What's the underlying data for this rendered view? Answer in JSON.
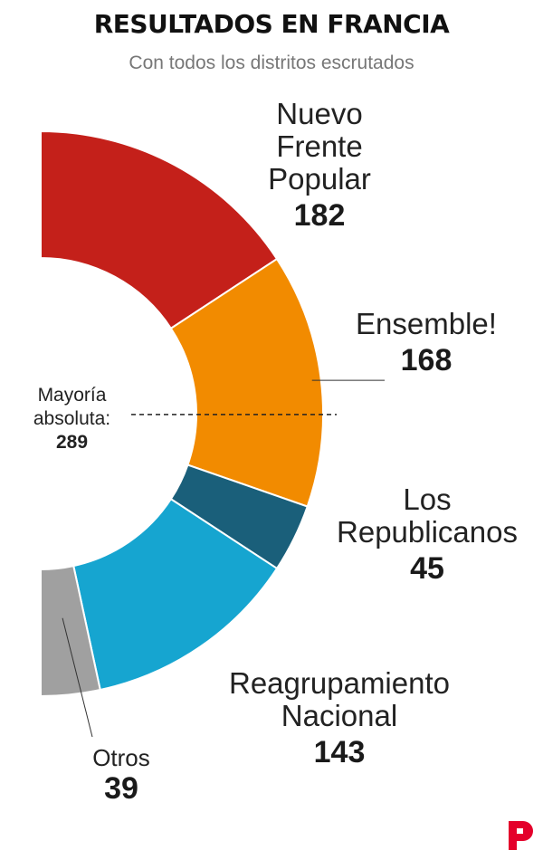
{
  "title": "RESULTADOS EN FRANCIA",
  "subtitle": "Con todos los distritos escrutados",
  "majority": {
    "label_line1": "Mayoría",
    "label_line2": "absoluta:",
    "value": "289"
  },
  "chart_data": {
    "type": "pie",
    "variant": "half-donut",
    "total": 577,
    "title": "RESULTADOS EN FRANCIA",
    "subtitle": "Con todos los distritos escrutados",
    "series": [
      {
        "name": "Nuevo Frente Popular",
        "value": 182,
        "color": "#c4201a"
      },
      {
        "name": "Ensemble!",
        "value": 168,
        "color": "#f28b00"
      },
      {
        "name": "Los Republicanos",
        "value": 45,
        "color": "#1a5f7a"
      },
      {
        "name": "Reagrupamiento Nacional",
        "value": 143,
        "color": "#16a5d0"
      },
      {
        "name": "Otros",
        "value": 39,
        "color": "#a0a0a0"
      }
    ],
    "majority_line": 289
  },
  "labels": [
    {
      "lines": [
        "Nuevo",
        "Frente",
        "Popular"
      ],
      "value": "182"
    },
    {
      "lines": [
        "Ensemble!"
      ],
      "value": "168"
    },
    {
      "lines": [
        "Los",
        "Republicanos"
      ],
      "value": "45"
    },
    {
      "lines": [
        "Reagrupamiento",
        "Nacional"
      ],
      "value": "143"
    },
    {
      "lines": [
        "Otros"
      ],
      "value": "39"
    }
  ],
  "logo": {
    "icon": "p-logo-icon",
    "color": "#e4002b"
  }
}
